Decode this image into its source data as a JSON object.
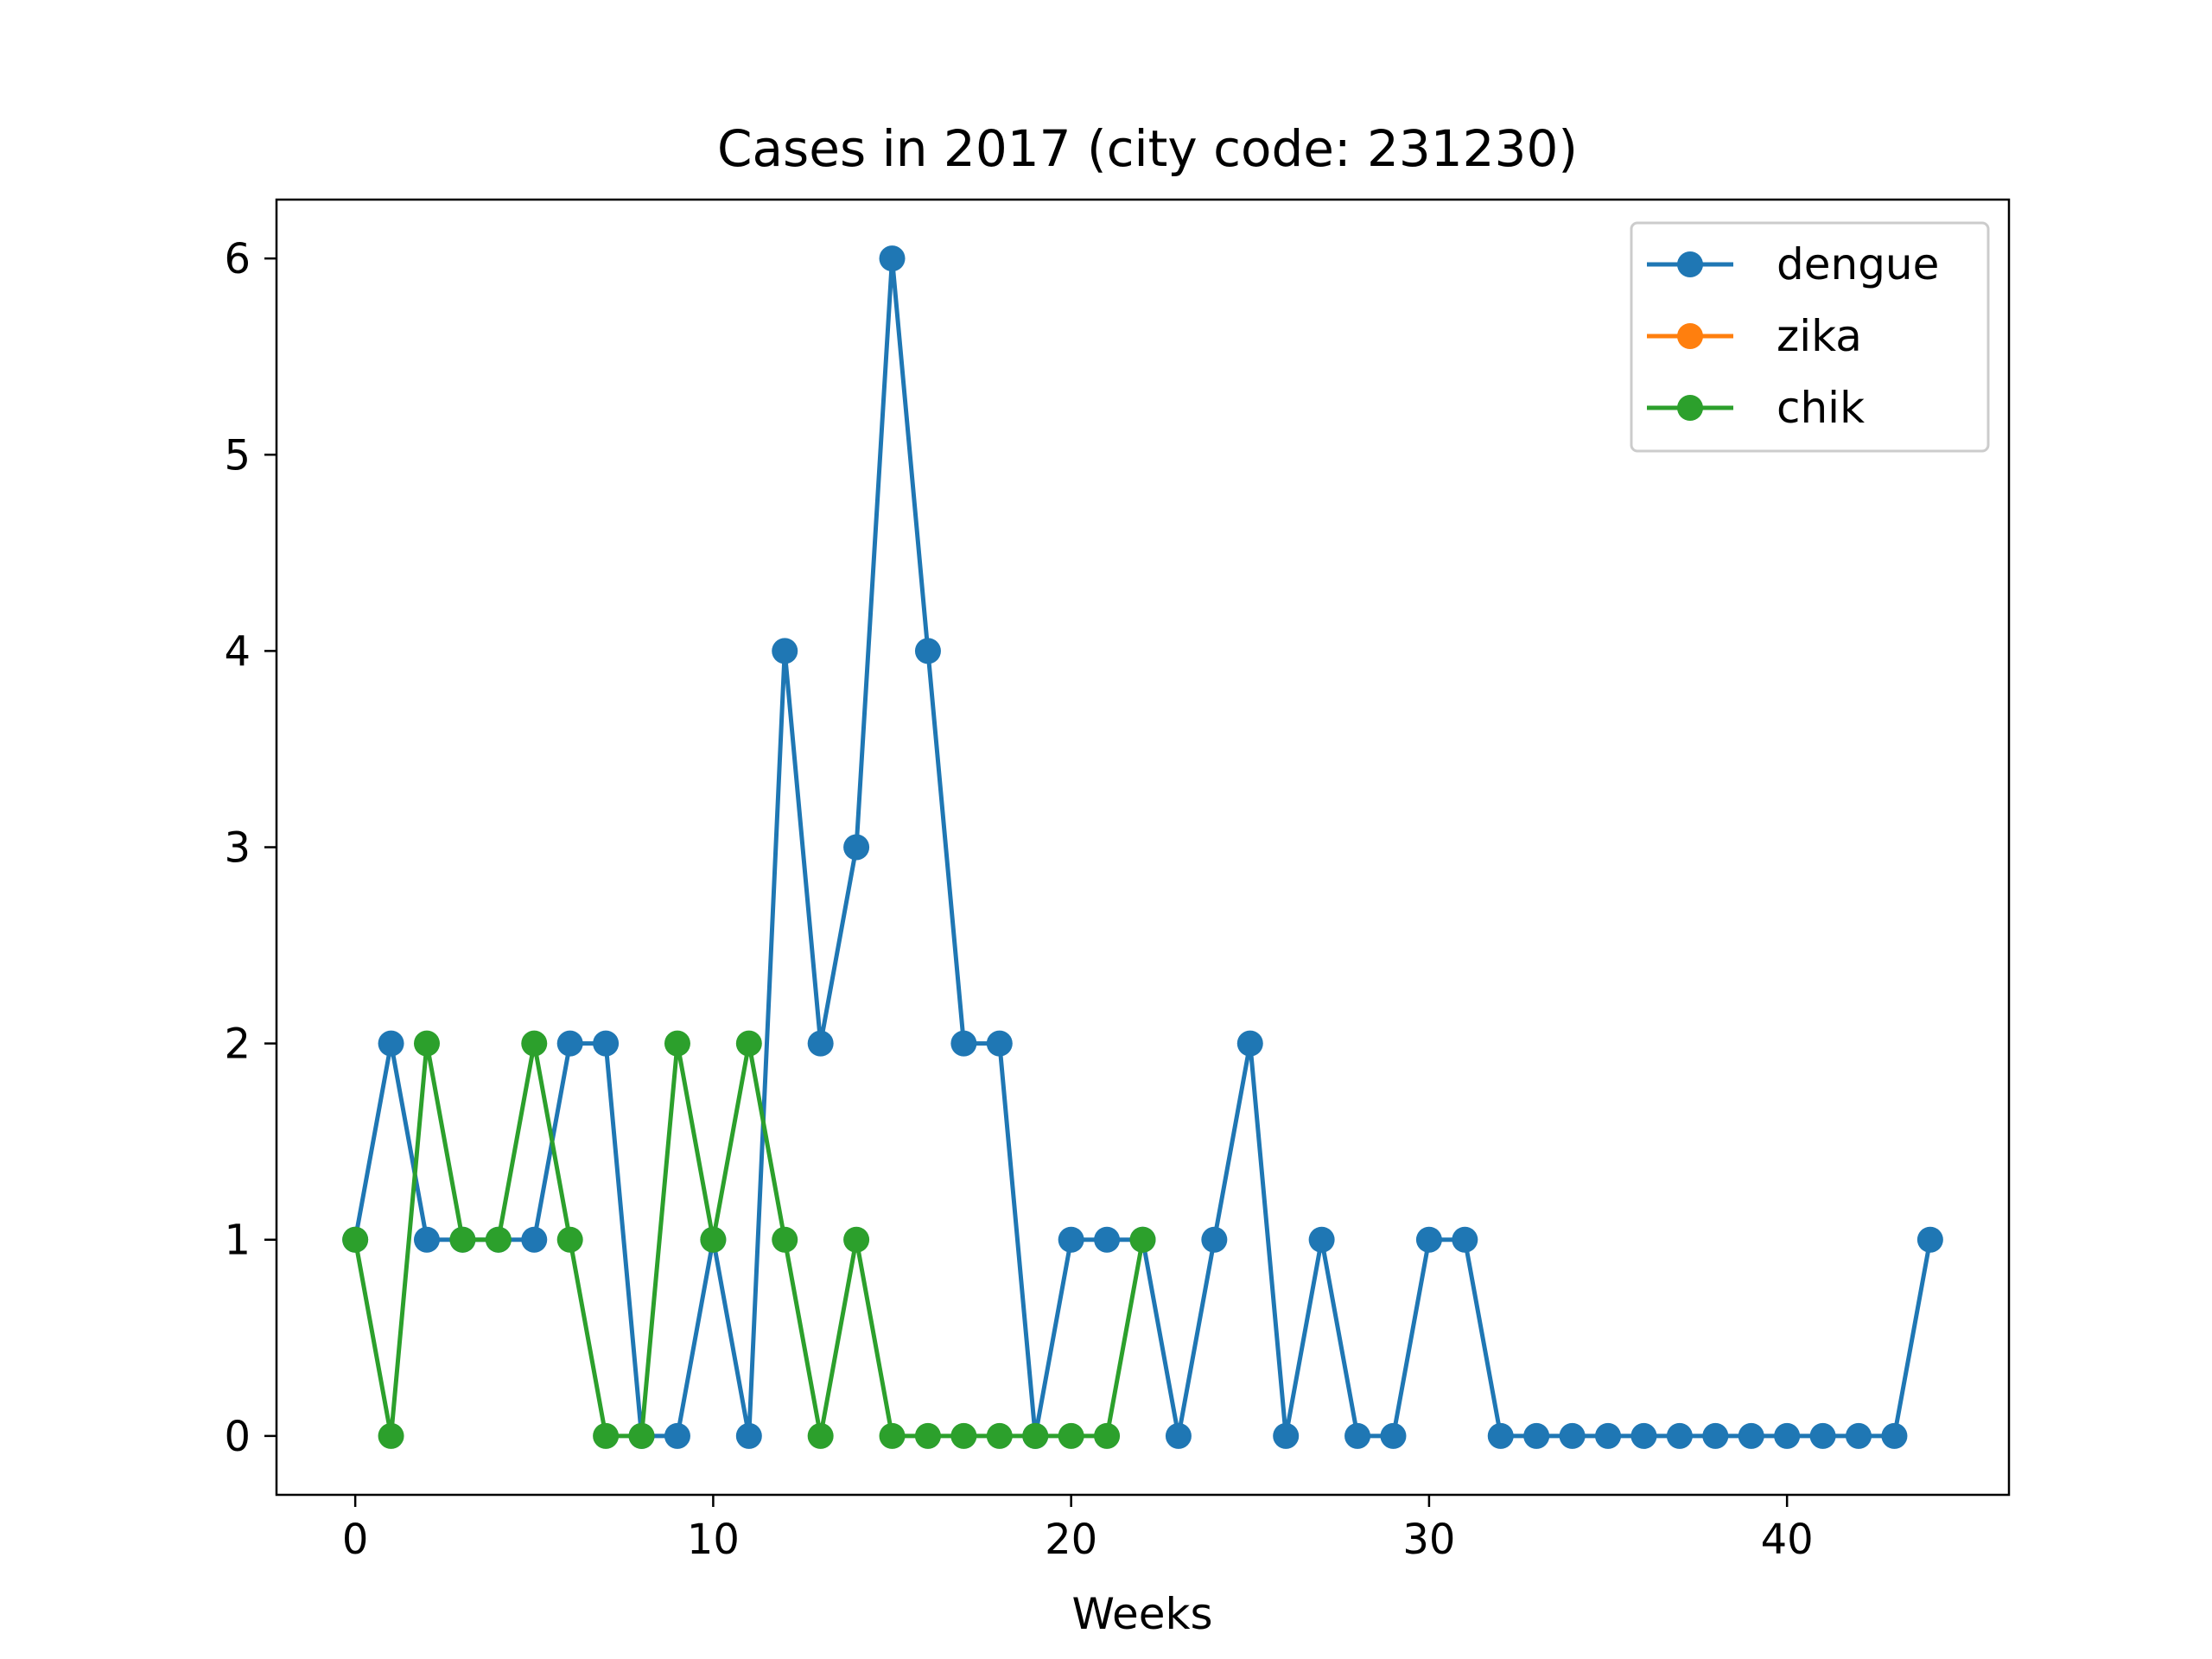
{
  "chart_data": {
    "type": "line",
    "title": "Cases in 2017 (city code: 231230)",
    "xlabel": "Weeks",
    "ylabel": "",
    "xlim": [
      -2.2,
      46.2
    ],
    "ylim": [
      -0.3,
      6.3
    ],
    "xticks": [
      0,
      10,
      20,
      30,
      40
    ],
    "yticks": [
      0,
      1,
      2,
      3,
      4,
      5,
      6
    ],
    "grid": false,
    "legend_position": "top-right",
    "series": [
      {
        "name": "dengue",
        "color": "#1f77b4",
        "x": [
          0,
          1,
          2,
          3,
          4,
          5,
          6,
          7,
          8,
          9,
          10,
          11,
          12,
          13,
          14,
          15,
          16,
          17,
          18,
          19,
          20,
          21,
          22,
          23,
          24,
          25,
          26,
          27,
          28,
          29,
          30,
          31,
          32,
          33,
          34,
          35,
          36,
          37,
          38,
          39,
          40,
          41,
          42,
          43,
          44
        ],
        "values": [
          1,
          2,
          1,
          1,
          1,
          1,
          2,
          2,
          0,
          0,
          1,
          0,
          4,
          2,
          3,
          6,
          4,
          2,
          2,
          0,
          1,
          1,
          1,
          0,
          1,
          2,
          0,
          1,
          0,
          0,
          1,
          1,
          0,
          0,
          0,
          0,
          0,
          0,
          0,
          0,
          0,
          0,
          0,
          0,
          1
        ]
      },
      {
        "name": "zika",
        "color": "#ff7f0e",
        "x": [],
        "values": []
      },
      {
        "name": "chik",
        "color": "#2ca02c",
        "x": [
          0,
          1,
          2,
          3,
          4,
          5,
          6,
          7,
          8,
          9,
          10,
          11,
          12,
          13,
          14,
          15,
          16,
          17,
          18,
          19,
          20,
          21,
          22
        ],
        "values": [
          1,
          0,
          2,
          1,
          1,
          2,
          1,
          0,
          0,
          2,
          1,
          2,
          1,
          0,
          1,
          0,
          0,
          0,
          0,
          0,
          0,
          0,
          1
        ]
      }
    ]
  }
}
